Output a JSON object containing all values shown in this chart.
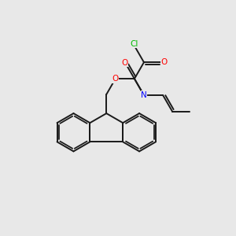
{
  "background_color": "#e8e8e8",
  "bond_color": "#1a1a1a",
  "atom_colors": {
    "O": "#ff0000",
    "N": "#0000ff",
    "Cl": "#00bb00"
  },
  "figsize": [
    3.0,
    3.0
  ],
  "dpi": 100,
  "lw": 1.4,
  "fs": 7.5
}
